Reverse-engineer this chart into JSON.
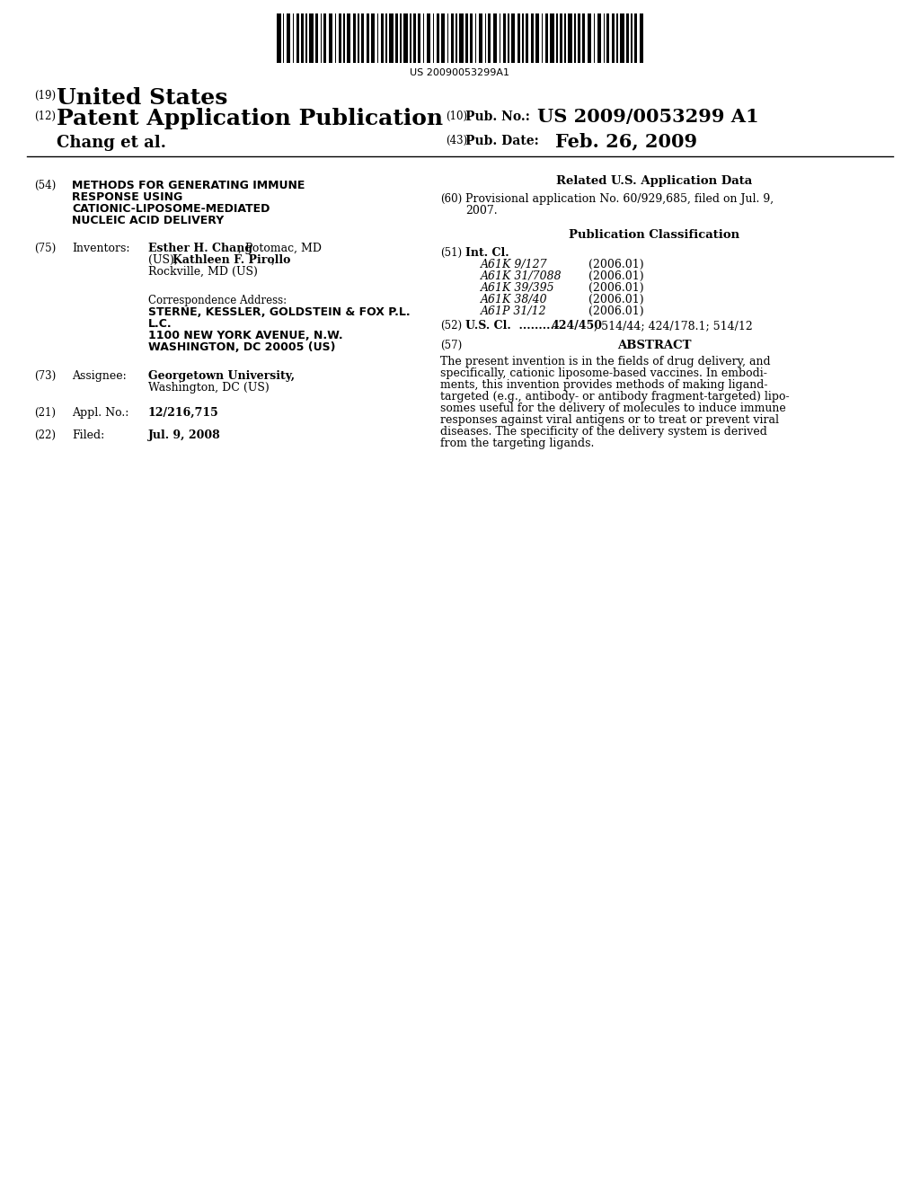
{
  "background_color": "#ffffff",
  "barcode_text": "US 20090053299A1",
  "united_states": "United States",
  "patent_app_pub": "Patent Application Publication",
  "pub_no_label": "Pub. No.:",
  "pub_no_value": "US 2009/0053299 A1",
  "chang_et_al": "Chang et al.",
  "pub_date_label": "Pub. Date:",
  "pub_date_value": "Feb. 26, 2009",
  "title_lines": [
    "METHODS FOR GENERATING IMMUNE",
    "RESPONSE USING",
    "CATIONIC-LIPOSOME-MEDIATED",
    "NUCLEIC ACID DELIVERY"
  ],
  "inventors_bold1": "Esther H. Chang",
  "inventors_rest1": ", Potomac, MD",
  "inventors_pre2": "(US); ",
  "inventors_bold2": "Kathleen F. Pirollo",
  "inventors_rest2": ",",
  "inventors_line3": "Rockville, MD (US)",
  "corr_addr_label": "Correspondence Address:",
  "corr_lines": [
    "STERNE, KESSLER, GOLDSTEIN & FOX P.L.",
    "L.C.",
    "1100 NEW YORK AVENUE, N.W.",
    "WASHINGTON, DC 20005 (US)"
  ],
  "assignee_name": "Georgetown University,",
  "assignee_addr": "Washington, DC (US)",
  "appl_no_value": "12/216,715",
  "filed_value": "Jul. 9, 2008",
  "related_us_data": "Related U.S. Application Data",
  "provisional_line1": "Provisional application No. 60/929,685, filed on Jul. 9,",
  "provisional_line2": "2007.",
  "pub_classification": "Publication Classification",
  "int_cl_label": "Int. Cl.",
  "int_cl_entries": [
    [
      "A61K 9/127",
      "(2006.01)"
    ],
    [
      "A61K 31/7088",
      "(2006.01)"
    ],
    [
      "A61K 39/395",
      "(2006.01)"
    ],
    [
      "A61K 38/40",
      "(2006.01)"
    ],
    [
      "A61P 31/12",
      "(2006.01)"
    ]
  ],
  "us_cl_dots": "U.S. Cl.   ..........",
  "us_cl_bold": "424/450",
  "us_cl_rest": "; 514/44; 424/178.1; 514/12",
  "abstract_label": "ABSTRACT",
  "abstract_lines": [
    "The present invention is in the fields of drug delivery, and",
    "specifically, cationic liposome-based vaccines. In embodi-",
    "ments, this invention provides methods of making ligand-",
    "targeted (e.g., antibody- or antibody fragment-targeted) lipo-",
    "somes useful for the delivery of molecules to induce immune",
    "responses against viral antigens or to treat or prevent viral",
    "diseases. The specificity of the delivery system is derived",
    "from the targeting ligands."
  ]
}
